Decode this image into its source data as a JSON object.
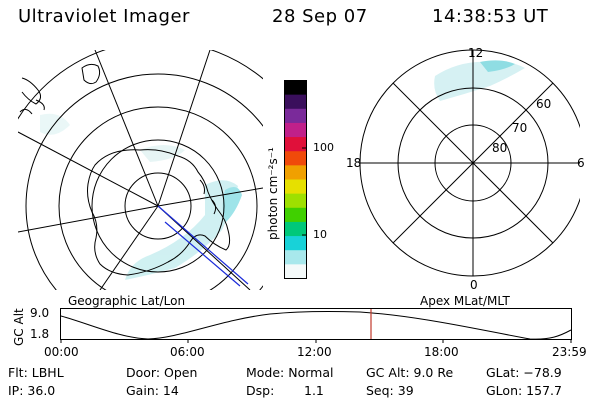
{
  "header": {
    "instrument": "Ultraviolet Imager",
    "date": "28 Sep 07",
    "time": "14:38:53 UT"
  },
  "left_panel": {
    "label": "Geographic Lat/Lon"
  },
  "colorbar": {
    "unit_label": "photon cm⁻²s⁻¹",
    "ticks": [
      "100",
      "10"
    ],
    "colors": [
      "#000000",
      "#3a0f5c",
      "#7a2a9a",
      "#c0208a",
      "#e0103a",
      "#f04a0a",
      "#f0a000",
      "#e6e000",
      "#9ee000",
      "#40d000",
      "#00c87a",
      "#18d2d8",
      "#a8e8ec",
      "#f4fafa"
    ]
  },
  "right_panel": {
    "label": "Apex MLat/MLT",
    "mlt_labels": {
      "top": "12",
      "left": "18",
      "right": "6",
      "bottom": "0"
    },
    "lat_labels": [
      "60",
      "70",
      "80"
    ]
  },
  "altitude_plot": {
    "ylabel": "GC Alt",
    "y_ticks": [
      "9.0",
      "1.8"
    ],
    "x_ticks": [
      "00:00",
      "06:00",
      "12:00",
      "18:00",
      "23:59"
    ],
    "marker_color": "#c0392b"
  },
  "info": {
    "flt": "Flt: LBHL",
    "ip": "IP: 36.0",
    "door": "Door: Open",
    "gain": "Gain: 14",
    "mode": "Mode: Normal",
    "dsp_label": "Dsp:",
    "dsp_value": "1.1",
    "gc_alt": "GC Alt: 9.0 Re",
    "seq": "Seq: 39",
    "glat": "GLat: −78.9",
    "glon": "GLon: 157.7"
  }
}
